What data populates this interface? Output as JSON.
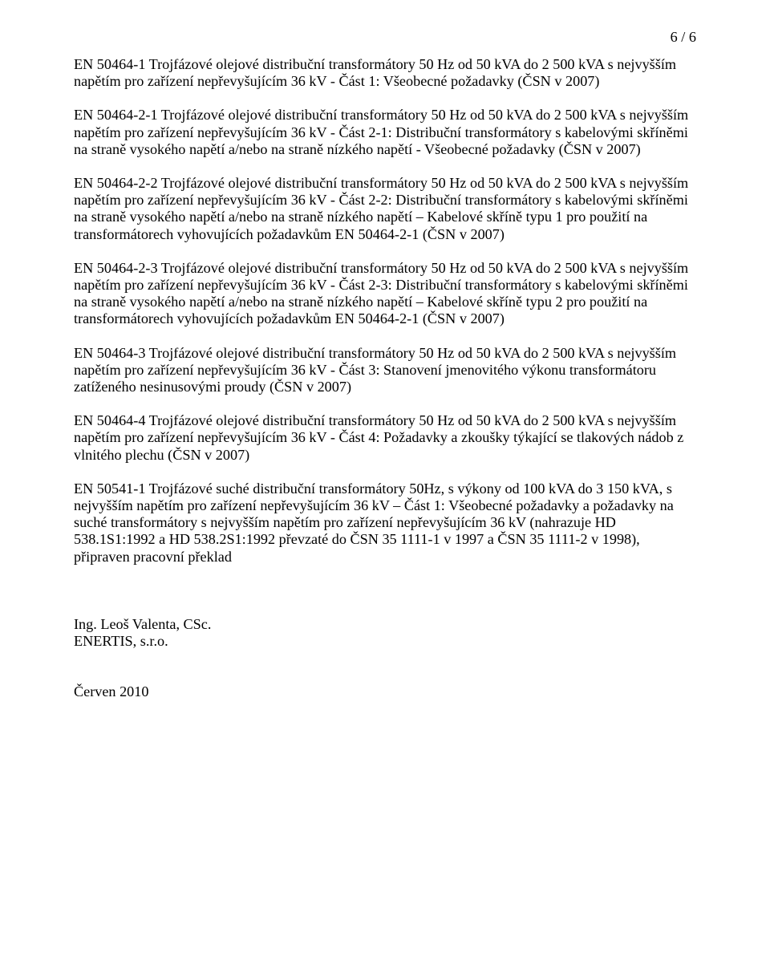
{
  "pageNumber": "6 / 6",
  "paragraphs": [
    "EN 50464-1 Trojfázové olejové distribuční transformátory 50 Hz od 50 kVA do 2 500 kVA s nejvyšším napětím pro zařízení nepřevyšujícím 36 kV - Část 1: Všeobecné požadavky (ČSN v 2007)",
    "EN 50464-2-1 Trojfázové olejové distribuční transformátory 50 Hz od 50 kVA do 2 500 kVA s nejvyšším napětím pro zařízení nepřevyšujícím 36 kV - Část 2-1: Distribuční transformátory s kabelovými skříněmi na straně vysokého napětí a/nebo na straně nízkého napětí - Všeobecné požadavky (ČSN v 2007)",
    "EN 50464-2-2 Trojfázové olejové distribuční transformátory 50 Hz od 50 kVA do 2 500 kVA s nejvyšším napětím pro zařízení nepřevyšujícím 36 kV - Část 2-2: Distribuční transformátory s kabelovými skříněmi na straně vysokého napětí a/nebo na straně nízkého napětí – Kabelové skříně typu 1 pro použití na transformátorech vyhovujících požadavkům EN 50464-2-1 (ČSN v 2007)",
    "EN 50464-2-3 Trojfázové olejové distribuční transformátory 50 Hz od 50 kVA do 2 500 kVA s nejvyšším napětím pro zařízení nepřevyšujícím 36 kV - Část 2-3: Distribuční transformátory s kabelovými skříněmi na straně vysokého napětí a/nebo na straně nízkého napětí – Kabelové skříně typu 2 pro použití na transformátorech vyhovujících požadavkům EN 50464-2-1 (ČSN v 2007)",
    "EN 50464-3 Trojfázové olejové distribuční transformátory 50 Hz od 50 kVA do 2 500 kVA s nejvyšším napětím pro zařízení nepřevyšujícím 36 kV - Část 3: Stanovení jmenovitého výkonu transformátoru zatíženého nesinusovými proudy (ČSN v 2007)",
    "EN 50464-4 Trojfázové olejové distribuční transformátory 50 Hz od 50 kVA do 2 500 kVA s nejvyšším napětím pro zařízení nepřevyšujícím 36 kV - Část 4: Požadavky a zkoušky týkající se tlakových nádob z vlnitého plechu (ČSN v 2007)",
    "EN 50541-1 Trojfázové suché distribuční transformátory 50Hz, s výkony od 100 kVA do 3 150 kVA, s nejvyšším napětím pro zařízení nepřevyšujícím 36 kV – Část 1: Všeobecné požadavky a požadavky na suché transformátory s nejvyšším napětím pro zařízení nepřevyšujícím 36 kV (nahrazuje HD 538.1S1:1992 a HD 538.2S1:1992 převzaté do ČSN 35 1111-1 v 1997 a ČSN 35 1111-2 v 1998), připraven pracovní překlad"
  ],
  "signature": {
    "name": "Ing. Leoš Valenta, CSc.",
    "org": "ENERTIS, s.r.o."
  },
  "date": "Červen 2010"
}
